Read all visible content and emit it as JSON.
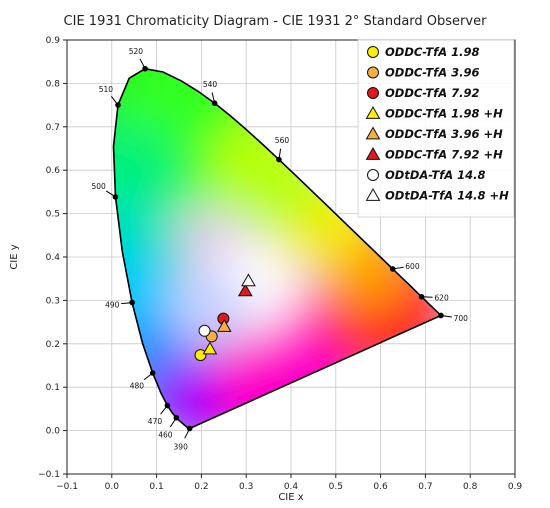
{
  "chart_data": {
    "type": "scatter",
    "title": "CIE 1931 Chromaticity Diagram - CIE 1931 2° Standard Observer",
    "xlabel": "CIE x",
    "ylabel": "CIE y",
    "xlim": [
      -0.1,
      0.9
    ],
    "ylim": [
      -0.1,
      0.9
    ],
    "xticks": [
      "−0.1",
      "0.0",
      "0.1",
      "0.2",
      "0.3",
      "0.4",
      "0.5",
      "0.6",
      "0.7",
      "0.8",
      "0.9"
    ],
    "yticks": [
      "−0.1",
      "0.0",
      "0.1",
      "0.2",
      "0.3",
      "0.4",
      "0.5",
      "0.6",
      "0.7",
      "0.8",
      "0.9"
    ],
    "grid": true,
    "legend_position": "top-right",
    "spectral_locus": [
      [
        0.1741,
        0.005
      ],
      [
        0.1738,
        0.0049
      ],
      [
        0.1736,
        0.0049
      ],
      [
        0.1733,
        0.0048
      ],
      [
        0.173,
        0.0048
      ],
      [
        0.1726,
        0.0048
      ],
      [
        0.1721,
        0.0048
      ],
      [
        0.1714,
        0.0051
      ],
      [
        0.1703,
        0.0058
      ],
      [
        0.1689,
        0.0069
      ],
      [
        0.1669,
        0.0086
      ],
      [
        0.1644,
        0.0109
      ],
      [
        0.1611,
        0.0138
      ],
      [
        0.1566,
        0.0177
      ],
      [
        0.151,
        0.0227
      ],
      [
        0.144,
        0.0297
      ],
      [
        0.1355,
        0.0399
      ],
      [
        0.1241,
        0.0578
      ],
      [
        0.1096,
        0.0868
      ],
      [
        0.0913,
        0.1327
      ],
      [
        0.0687,
        0.2007
      ],
      [
        0.0454,
        0.295
      ],
      [
        0.0235,
        0.4127
      ],
      [
        0.0082,
        0.5384
      ],
      [
        0.0039,
        0.6548
      ],
      [
        0.0139,
        0.7502
      ],
      [
        0.0389,
        0.812
      ],
      [
        0.0743,
        0.8338
      ],
      [
        0.1142,
        0.8262
      ],
      [
        0.1547,
        0.8059
      ],
      [
        0.1929,
        0.7816
      ],
      [
        0.2296,
        0.7543
      ],
      [
        0.2658,
        0.7243
      ],
      [
        0.3016,
        0.6923
      ],
      [
        0.3373,
        0.6589
      ],
      [
        0.3731,
        0.6245
      ],
      [
        0.4087,
        0.5896
      ],
      [
        0.4441,
        0.5547
      ],
      [
        0.4788,
        0.5202
      ],
      [
        0.5125,
        0.4866
      ],
      [
        0.5448,
        0.4544
      ],
      [
        0.5752,
        0.4242
      ],
      [
        0.6029,
        0.3965
      ],
      [
        0.627,
        0.3725
      ],
      [
        0.6482,
        0.3514
      ],
      [
        0.6658,
        0.334
      ],
      [
        0.6801,
        0.3197
      ],
      [
        0.6915,
        0.3083
      ],
      [
        0.7006,
        0.2993
      ],
      [
        0.7079,
        0.292
      ],
      [
        0.714,
        0.2859
      ],
      [
        0.719,
        0.2809
      ],
      [
        0.723,
        0.277
      ],
      [
        0.726,
        0.274
      ],
      [
        0.7283,
        0.2717
      ],
      [
        0.73,
        0.27
      ],
      [
        0.7347,
        0.2653
      ]
    ],
    "wavelength_labels": [
      {
        "label": "390",
        "x": 0.1738,
        "y": 0.0049
      },
      {
        "label": "460",
        "x": 0.144,
        "y": 0.0297
      },
      {
        "label": "470",
        "x": 0.1241,
        "y": 0.0578
      },
      {
        "label": "480",
        "x": 0.0913,
        "y": 0.1327
      },
      {
        "label": "490",
        "x": 0.0454,
        "y": 0.295
      },
      {
        "label": "500",
        "x": 0.0082,
        "y": 0.5384
      },
      {
        "label": "510",
        "x": 0.0139,
        "y": 0.7502
      },
      {
        "label": "520",
        "x": 0.0743,
        "y": 0.8338
      },
      {
        "label": "540",
        "x": 0.2296,
        "y": 0.7543
      },
      {
        "label": "560",
        "x": 0.3731,
        "y": 0.6245
      },
      {
        "label": "600",
        "x": 0.627,
        "y": 0.3725
      },
      {
        "label": "620",
        "x": 0.6915,
        "y": 0.3083
      },
      {
        "label": "700",
        "x": 0.7347,
        "y": 0.2653
      }
    ],
    "series": [
      {
        "name": "ODDC-TfA 1.98",
        "marker": "circle",
        "color": "#ffee00",
        "x": 0.198,
        "y": 0.174
      },
      {
        "name": "ODDC-TfA 3.96",
        "marker": "circle",
        "color": "#f5b041",
        "x": 0.223,
        "y": 0.217
      },
      {
        "name": "ODDC-TfA 7.92",
        "marker": "circle",
        "color": "#e0191c",
        "x": 0.249,
        "y": 0.258
      },
      {
        "name": "ODDC-TfA 1.98 +H",
        "marker": "triangle",
        "color": "#ffee00",
        "x": 0.219,
        "y": 0.188
      },
      {
        "name": "ODDC-TfA 3.96 +H",
        "marker": "triangle",
        "color": "#f5b041",
        "x": 0.251,
        "y": 0.24
      },
      {
        "name": "ODDC-TfA 7.92 +H",
        "marker": "triangle",
        "color": "#e0191c",
        "x": 0.298,
        "y": 0.322
      },
      {
        "name": "ODtDA-TfA 14.8",
        "marker": "circle",
        "color": "#ffffff",
        "x": 0.207,
        "y": 0.23
      },
      {
        "name": "ODtDA-TfA 14.8 +H",
        "marker": "triangle",
        "color": "#ffffff",
        "x": 0.305,
        "y": 0.345
      }
    ]
  }
}
